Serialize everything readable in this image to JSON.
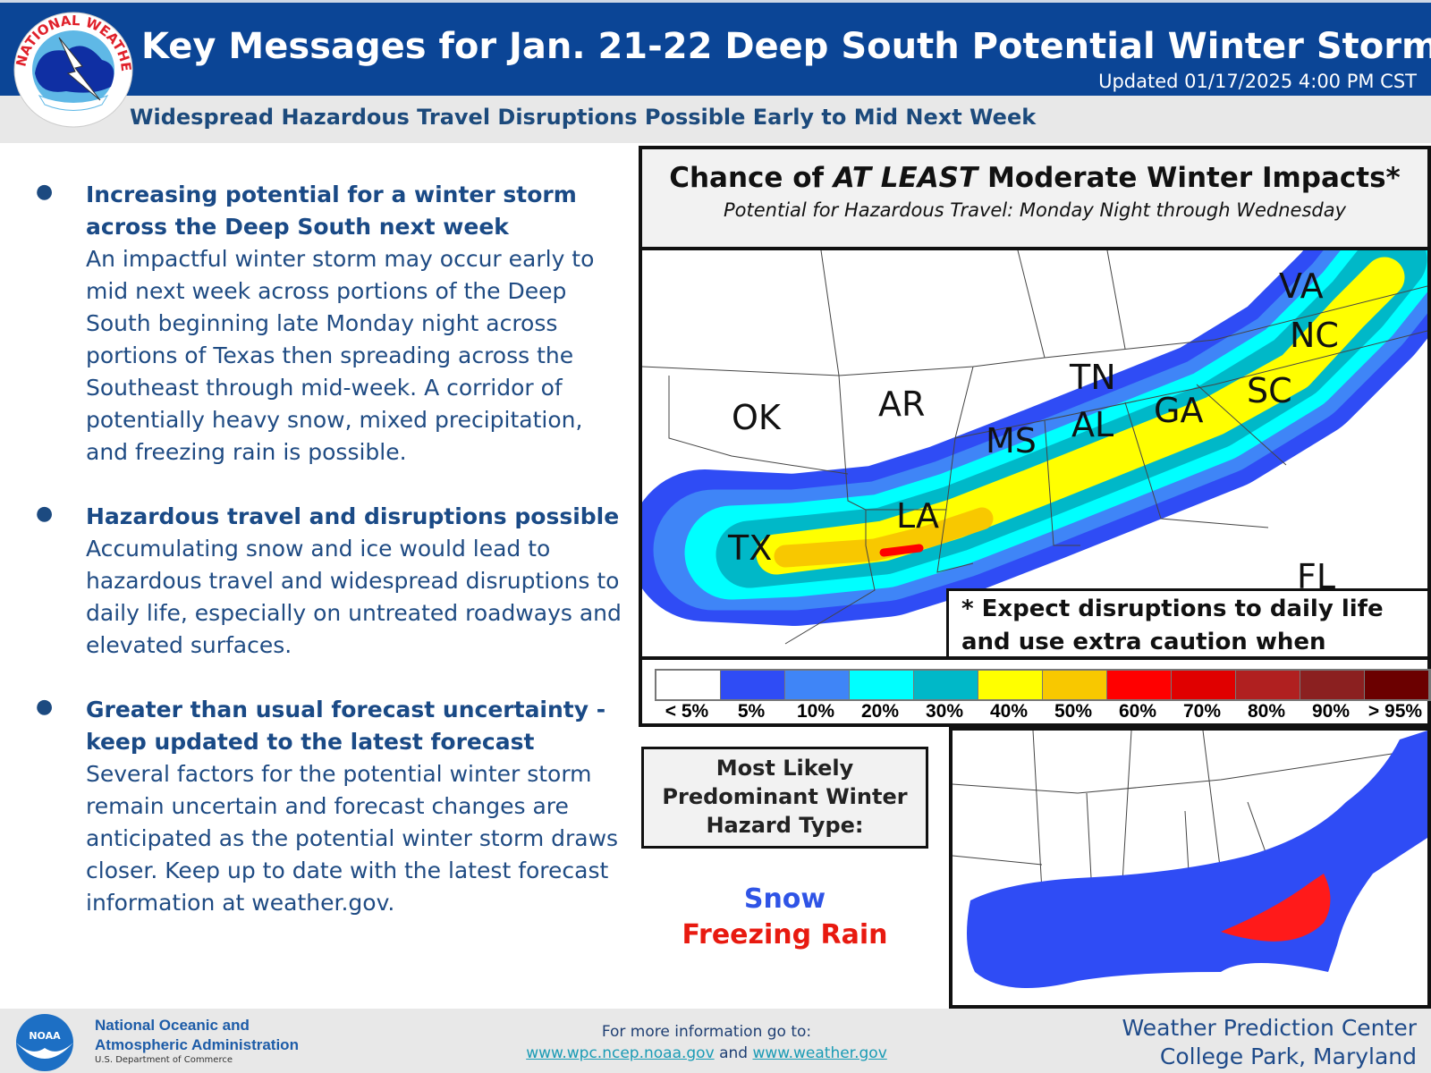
{
  "header": {
    "title": "Key Messages for Jan. 21-22 Deep South Potential Winter Storm",
    "updated": "Updated 01/17/2025 4:00 PM CST",
    "subtitle": "Widespread Hazardous Travel Disruptions Possible Early to Mid Next Week",
    "logo_text": "NATIONAL WEATHER SERVICE"
  },
  "bullets": [
    {
      "head": "Increasing potential for a winter storm across the Deep South next week",
      "body": "An impactful winter storm may occur early to mid next week across portions of the Deep South beginning late Monday night across portions of Texas then spreading across the Southeast through mid-week. A corridor of potentially heavy snow, mixed precipitation, and freezing rain is possible."
    },
    {
      "head": "Hazardous travel and disruptions possible",
      "body": "Accumulating snow and ice would lead to hazardous travel and widespread disruptions to daily life, especially on untreated roadways and elevated surfaces."
    },
    {
      "head": "Greater than usual forecast uncertainty - keep updated to the latest forecast",
      "body": "Several factors for the potential winter storm remain uncertain and forecast changes are anticipated as the potential winter storm draws closer. Keep up to date with the latest forecast information at weather.gov."
    }
  ],
  "map": {
    "title_pre": "Chance of ",
    "title_em": "AT LEAST",
    "title_post": " Moderate Winter Impacts*",
    "subtitle": "Potential for Hazardous Travel: Monday Night through Wednesday",
    "states": [
      "OK",
      "AR",
      "TN",
      "MS",
      "AL",
      "GA",
      "SC",
      "NC",
      "VA",
      "LA",
      "TX",
      "FL"
    ],
    "note": "* Expect disruptions to daily life and use extra caution when driving"
  },
  "legend": [
    {
      "label": "< 5%",
      "color": "#ffffff"
    },
    {
      "label": "5%",
      "color": "#2f4cf5"
    },
    {
      "label": "10%",
      "color": "#3f85f7"
    },
    {
      "label": "20%",
      "color": "#00ffff"
    },
    {
      "label": "30%",
      "color": "#00b8c8"
    },
    {
      "label": "40%",
      "color": "#ffff00"
    },
    {
      "label": "50%",
      "color": "#f8c800"
    },
    {
      "label": "60%",
      "color": "#ff0000"
    },
    {
      "label": "70%",
      "color": "#e00000"
    },
    {
      "label": "80%",
      "color": "#b02020"
    },
    {
      "label": "90%",
      "color": "#8b2020"
    },
    {
      "label": "> 95%",
      "color": "#6b0000"
    }
  ],
  "hazard": {
    "label": "Most Likely Predominant Winter Hazard Type:",
    "snow": "Snow",
    "freezing_rain": "Freezing Rain",
    "snow_color": "#2f54e6",
    "freezing_rain_color": "#e81a10"
  },
  "footer": {
    "noaa_line1": "National Oceanic and",
    "noaa_line2": "Atmospheric Administration",
    "noaa_dept": "U.S. Department of Commerce",
    "noaa_logo": "NOAA",
    "more": "For more information go to:",
    "link1": "www.wpc.ncep.noaa.gov",
    "and": "and",
    "link2": "www.weather.gov",
    "wpc1": "Weather Prediction Center",
    "wpc2": "College Park, Maryland"
  }
}
